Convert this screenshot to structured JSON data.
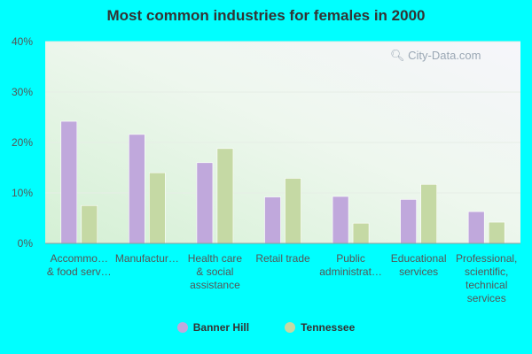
{
  "chart_data": {
    "type": "bar",
    "title": "Most common industries for females in 2000",
    "categories": [
      [
        "Accommo…",
        "& food serv…"
      ],
      [
        "Manufactur…"
      ],
      [
        "Health care",
        "& social",
        "assistance"
      ],
      [
        "Retail trade"
      ],
      [
        "Public",
        "administrat…"
      ],
      [
        "Educational",
        "services"
      ],
      [
        "Professional,",
        "scientific,",
        "technical",
        "services"
      ]
    ],
    "series": [
      {
        "name": "Banner Hill",
        "color": "#C0A8DC",
        "values": [
          24.2,
          21.6,
          16.0,
          9.2,
          9.3,
          8.7,
          6.3
        ]
      },
      {
        "name": "Tennessee",
        "color": "#C5D9A4",
        "values": [
          7.5,
          14.0,
          18.8,
          12.9,
          4.0,
          11.7,
          4.2
        ]
      }
    ],
    "y_ticks": [
      "0%",
      "10%",
      "20%",
      "30%",
      "40%"
    ],
    "ylim": [
      0,
      40
    ],
    "grid": true,
    "legend_position": "bottom"
  },
  "watermark": "City-Data.com"
}
